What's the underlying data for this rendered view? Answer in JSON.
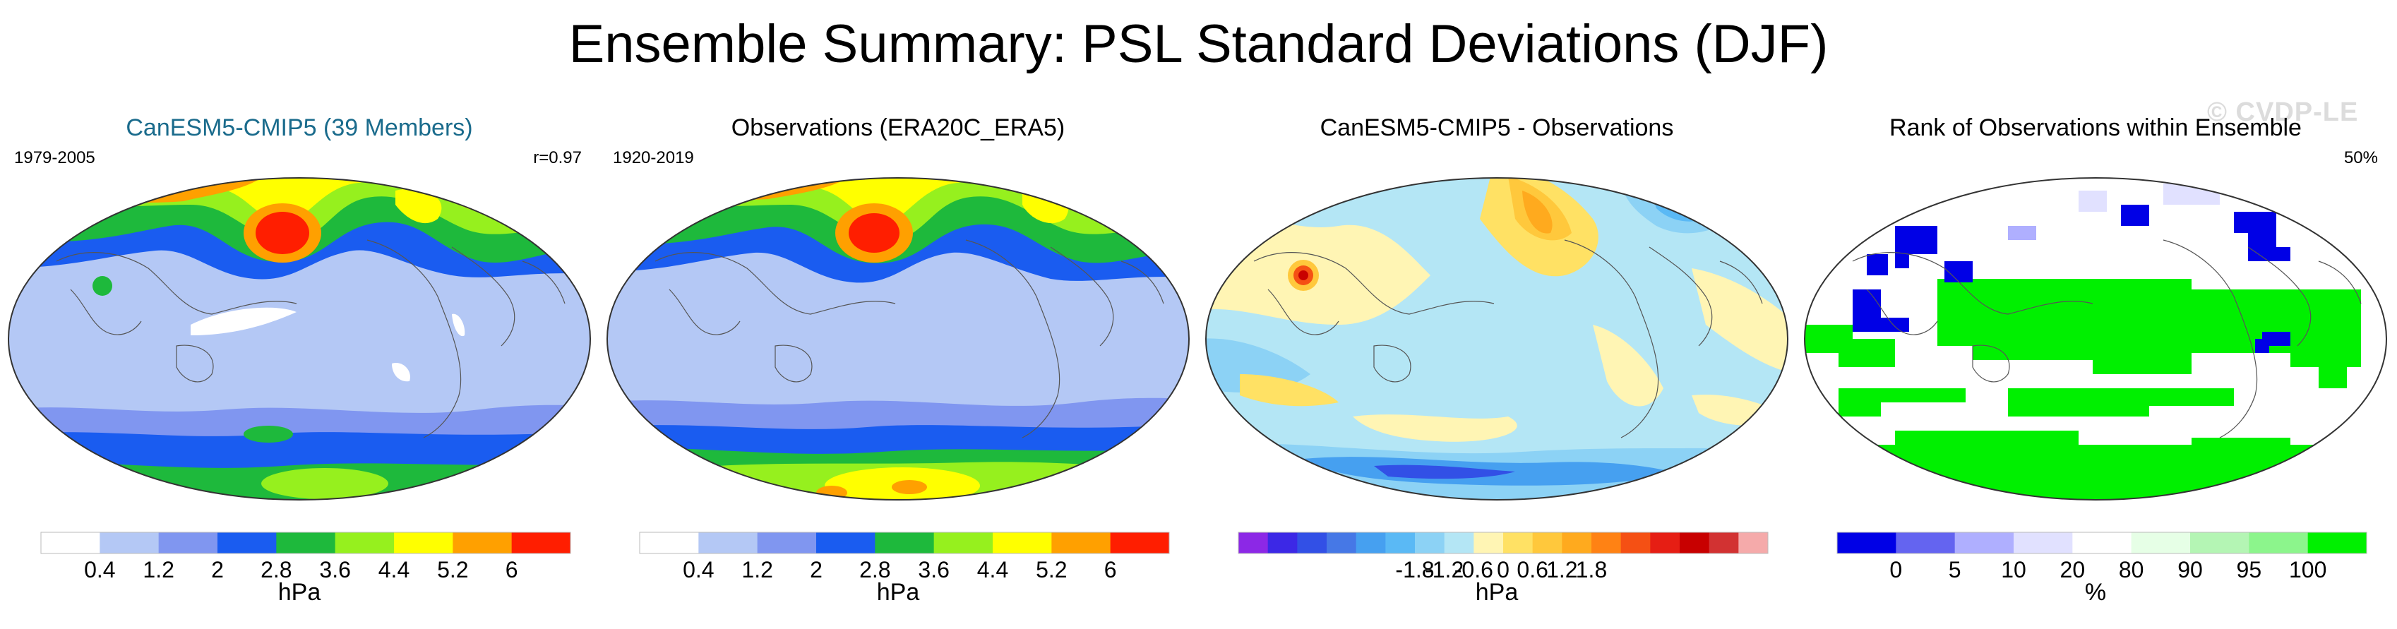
{
  "title": "Ensemble Summary: PSL Standard Deviations (DJF)",
  "watermark": "© CVDP-LE",
  "panels": [
    {
      "title": "CanESM5-CMIP5 (39 Members)",
      "title_color": "#1a6b8c",
      "left_label": "1979-2005",
      "right_label": "r=0.97",
      "colorbar": {
        "colors": [
          "#ffffff",
          "#b4c8f5",
          "#8096f0",
          "#1a5cf0",
          "#1eb93c",
          "#96f01e",
          "#ffff00",
          "#ffa000",
          "#ff1e00"
        ],
        "ticks": [
          "0.4",
          "1.2",
          "2",
          "2.8",
          "3.6",
          "4.4",
          "5.2",
          "6"
        ],
        "label": "hPa"
      }
    },
    {
      "title": "Observations (ERA20C_ERA5)",
      "title_color": "#000000",
      "left_label": "1920-2019",
      "right_label": "",
      "colorbar": {
        "colors": [
          "#ffffff",
          "#b4c8f5",
          "#8096f0",
          "#1a5cf0",
          "#1eb93c",
          "#96f01e",
          "#ffff00",
          "#ffa000",
          "#ff1e00"
        ],
        "ticks": [
          "0.4",
          "1.2",
          "2",
          "2.8",
          "3.6",
          "4.4",
          "5.2",
          "6"
        ],
        "label": "hPa"
      }
    },
    {
      "title": "CanESM5-CMIP5 - Observations",
      "title_color": "#000000",
      "left_label": "",
      "right_label": "",
      "colorbar": {
        "colors": [
          "#8c28e6",
          "#3c28e6",
          "#3250e6",
          "#4678e6",
          "#46a0f0",
          "#5ab9f5",
          "#8cd2f5",
          "#b4e6f5",
          "#fff5b4",
          "#ffe164",
          "#ffc83c",
          "#ffaa1e",
          "#ff8214",
          "#f55014",
          "#e61e14",
          "#c80000",
          "#d23232",
          "#f5aaaa"
        ],
        "ticks": [
          "-1.8",
          "-1.2",
          "-0.6",
          "0",
          "0.6",
          "1.2",
          "1.8"
        ],
        "label": "hPa"
      }
    },
    {
      "title": "Rank of Observations within Ensemble",
      "title_color": "#000000",
      "left_label": "",
      "right_label": "50%",
      "colorbar": {
        "colors": [
          "#0000e6",
          "#6464f0",
          "#afafff",
          "#e1e1ff",
          "#ffffff",
          "#e6ffe6",
          "#b4f5b4",
          "#8cf58c",
          "#00f000"
        ],
        "ticks": [
          "0",
          "5",
          "10",
          "20",
          "80",
          "90",
          "95",
          "100"
        ],
        "label": "%"
      }
    }
  ]
}
